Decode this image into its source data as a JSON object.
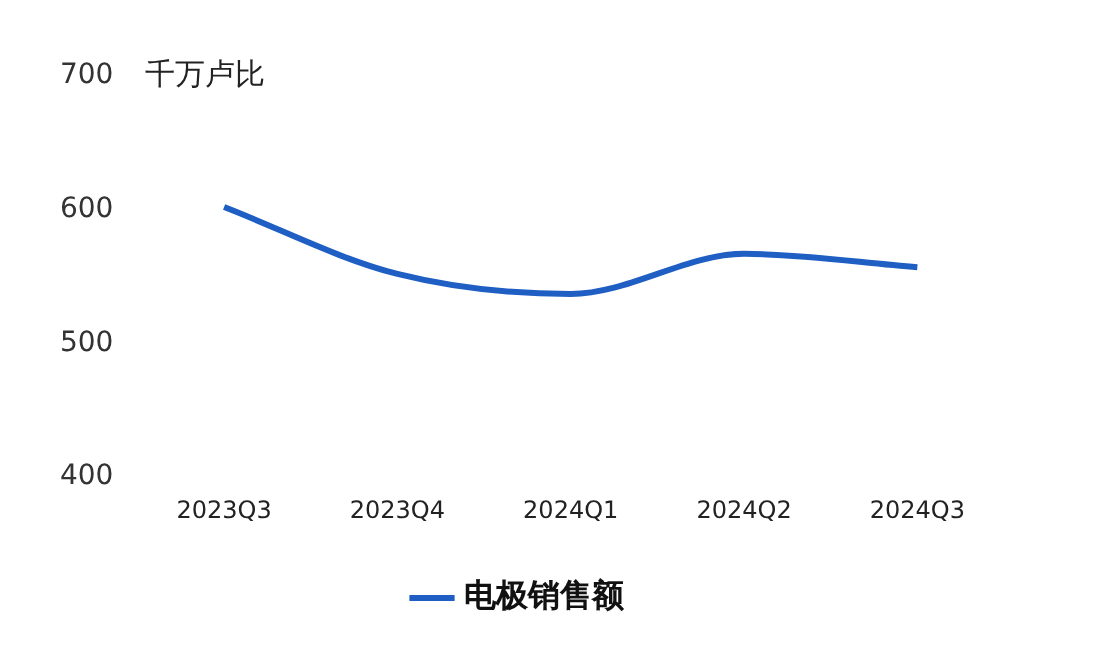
{
  "chart_data": {
    "type": "line",
    "ylabel": "千万卢比",
    "categories": [
      "2023Q3",
      "2023Q4",
      "2024Q1",
      "2024Q2",
      "2024Q3"
    ],
    "series": [
      {
        "name": "电极销售额",
        "color": "#1f5fc4",
        "values": [
          602,
          552,
          537,
          567,
          557
        ]
      }
    ],
    "ylim": [
      400,
      700
    ],
    "yticks": [
      400,
      500,
      600,
      700
    ],
    "grid": false,
    "legend": "bottom",
    "marker": "none",
    "line_style": "solid"
  }
}
